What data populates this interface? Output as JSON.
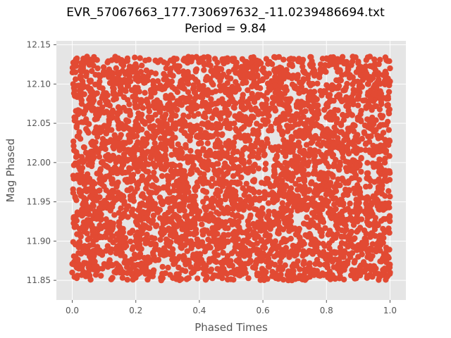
{
  "chart_data": {
    "type": "scatter",
    "title": "EVR_57067663_177.730697632_-11.0239486694.txt",
    "subtitle": "Period = 9.84",
    "xlabel": "Phased Times",
    "ylabel": "Mag Phased",
    "xlim": [
      -0.05,
      1.05
    ],
    "ylim": [
      11.825,
      12.155
    ],
    "x_ticks": [
      "0.0",
      "0.2",
      "0.4",
      "0.6",
      "0.8",
      "1.0"
    ],
    "x_tick_values": [
      0.0,
      0.2,
      0.4,
      0.6,
      0.8,
      1.0
    ],
    "y_ticks": [
      "11.85",
      "11.90",
      "11.95",
      "12.00",
      "12.05",
      "12.10",
      "12.15"
    ],
    "y_tick_values": [
      11.85,
      11.9,
      11.95,
      12.0,
      12.05,
      12.1,
      12.15
    ],
    "grid": true,
    "background_color": "#e5e5e5",
    "grid_color": "#ffffff",
    "marker_color": "#e24a33",
    "series": [
      {
        "x_range": [
          0.0,
          1.0
        ],
        "y_range": [
          11.85,
          12.135
        ],
        "distribution": "dense uniform cloud filling the full phase range",
        "sample_points": [
          [
            0.0,
            11.86
          ],
          [
            0.01,
            12.13
          ],
          [
            0.02,
            12.0
          ],
          [
            0.05,
            11.87
          ],
          [
            0.08,
            12.12
          ],
          [
            0.1,
            11.95
          ],
          [
            0.13,
            12.08
          ],
          [
            0.15,
            11.86
          ],
          [
            0.18,
            12.03
          ],
          [
            0.2,
            11.9
          ],
          [
            0.23,
            12.13
          ],
          [
            0.25,
            11.97
          ],
          [
            0.28,
            11.85
          ],
          [
            0.3,
            12.1
          ],
          [
            0.33,
            11.93
          ],
          [
            0.35,
            12.06
          ],
          [
            0.38,
            11.88
          ],
          [
            0.4,
            12.01
          ],
          [
            0.43,
            12.13
          ],
          [
            0.45,
            11.91
          ],
          [
            0.48,
            12.05
          ],
          [
            0.5,
            11.86
          ],
          [
            0.53,
            11.99
          ],
          [
            0.55,
            12.12
          ],
          [
            0.58,
            11.94
          ],
          [
            0.6,
            12.07
          ],
          [
            0.63,
            11.89
          ],
          [
            0.65,
            12.02
          ],
          [
            0.68,
            11.85
          ],
          [
            0.7,
            12.11
          ],
          [
            0.73,
            11.96
          ],
          [
            0.75,
            12.09
          ],
          [
            0.78,
            11.87
          ],
          [
            0.8,
            12.04
          ],
          [
            0.83,
            11.92
          ],
          [
            0.85,
            12.13
          ],
          [
            0.88,
            11.98
          ],
          [
            0.9,
            11.86
          ],
          [
            0.93,
            12.1
          ],
          [
            0.95,
            11.95
          ],
          [
            0.97,
            12.06
          ],
          [
            0.99,
            11.88
          ],
          [
            1.0,
            12.12
          ],
          [
            1.0,
            11.86
          ]
        ]
      }
    ]
  }
}
